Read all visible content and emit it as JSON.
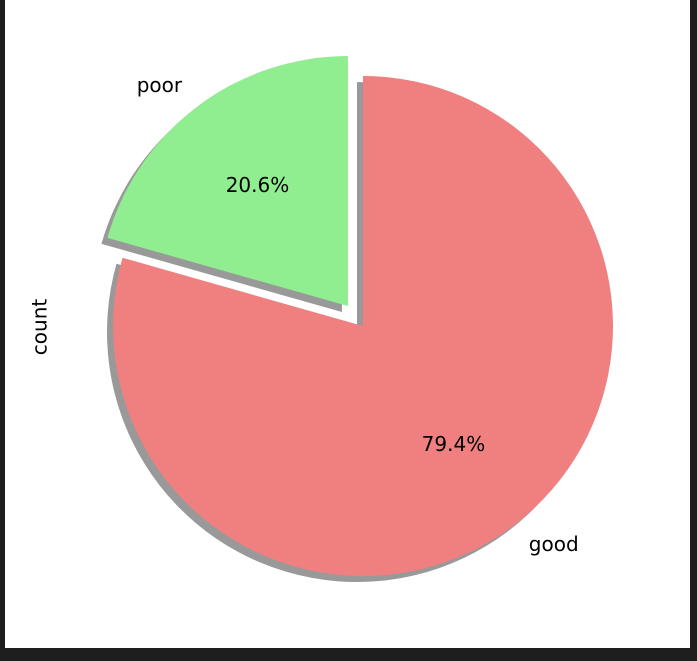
{
  "chart_data": {
    "type": "pie",
    "ylabel": "count",
    "categories": [
      "good",
      "poor"
    ],
    "percentages": [
      79.4,
      20.6
    ],
    "percentage_labels": [
      "79.4%",
      "20.6%"
    ],
    "colors": [
      "#f08080",
      "#90ee90"
    ],
    "start_angle_deg": 90,
    "counterclock": false,
    "explode": [
      0,
      0.1
    ],
    "shadow": true,
    "legend": "none"
  }
}
